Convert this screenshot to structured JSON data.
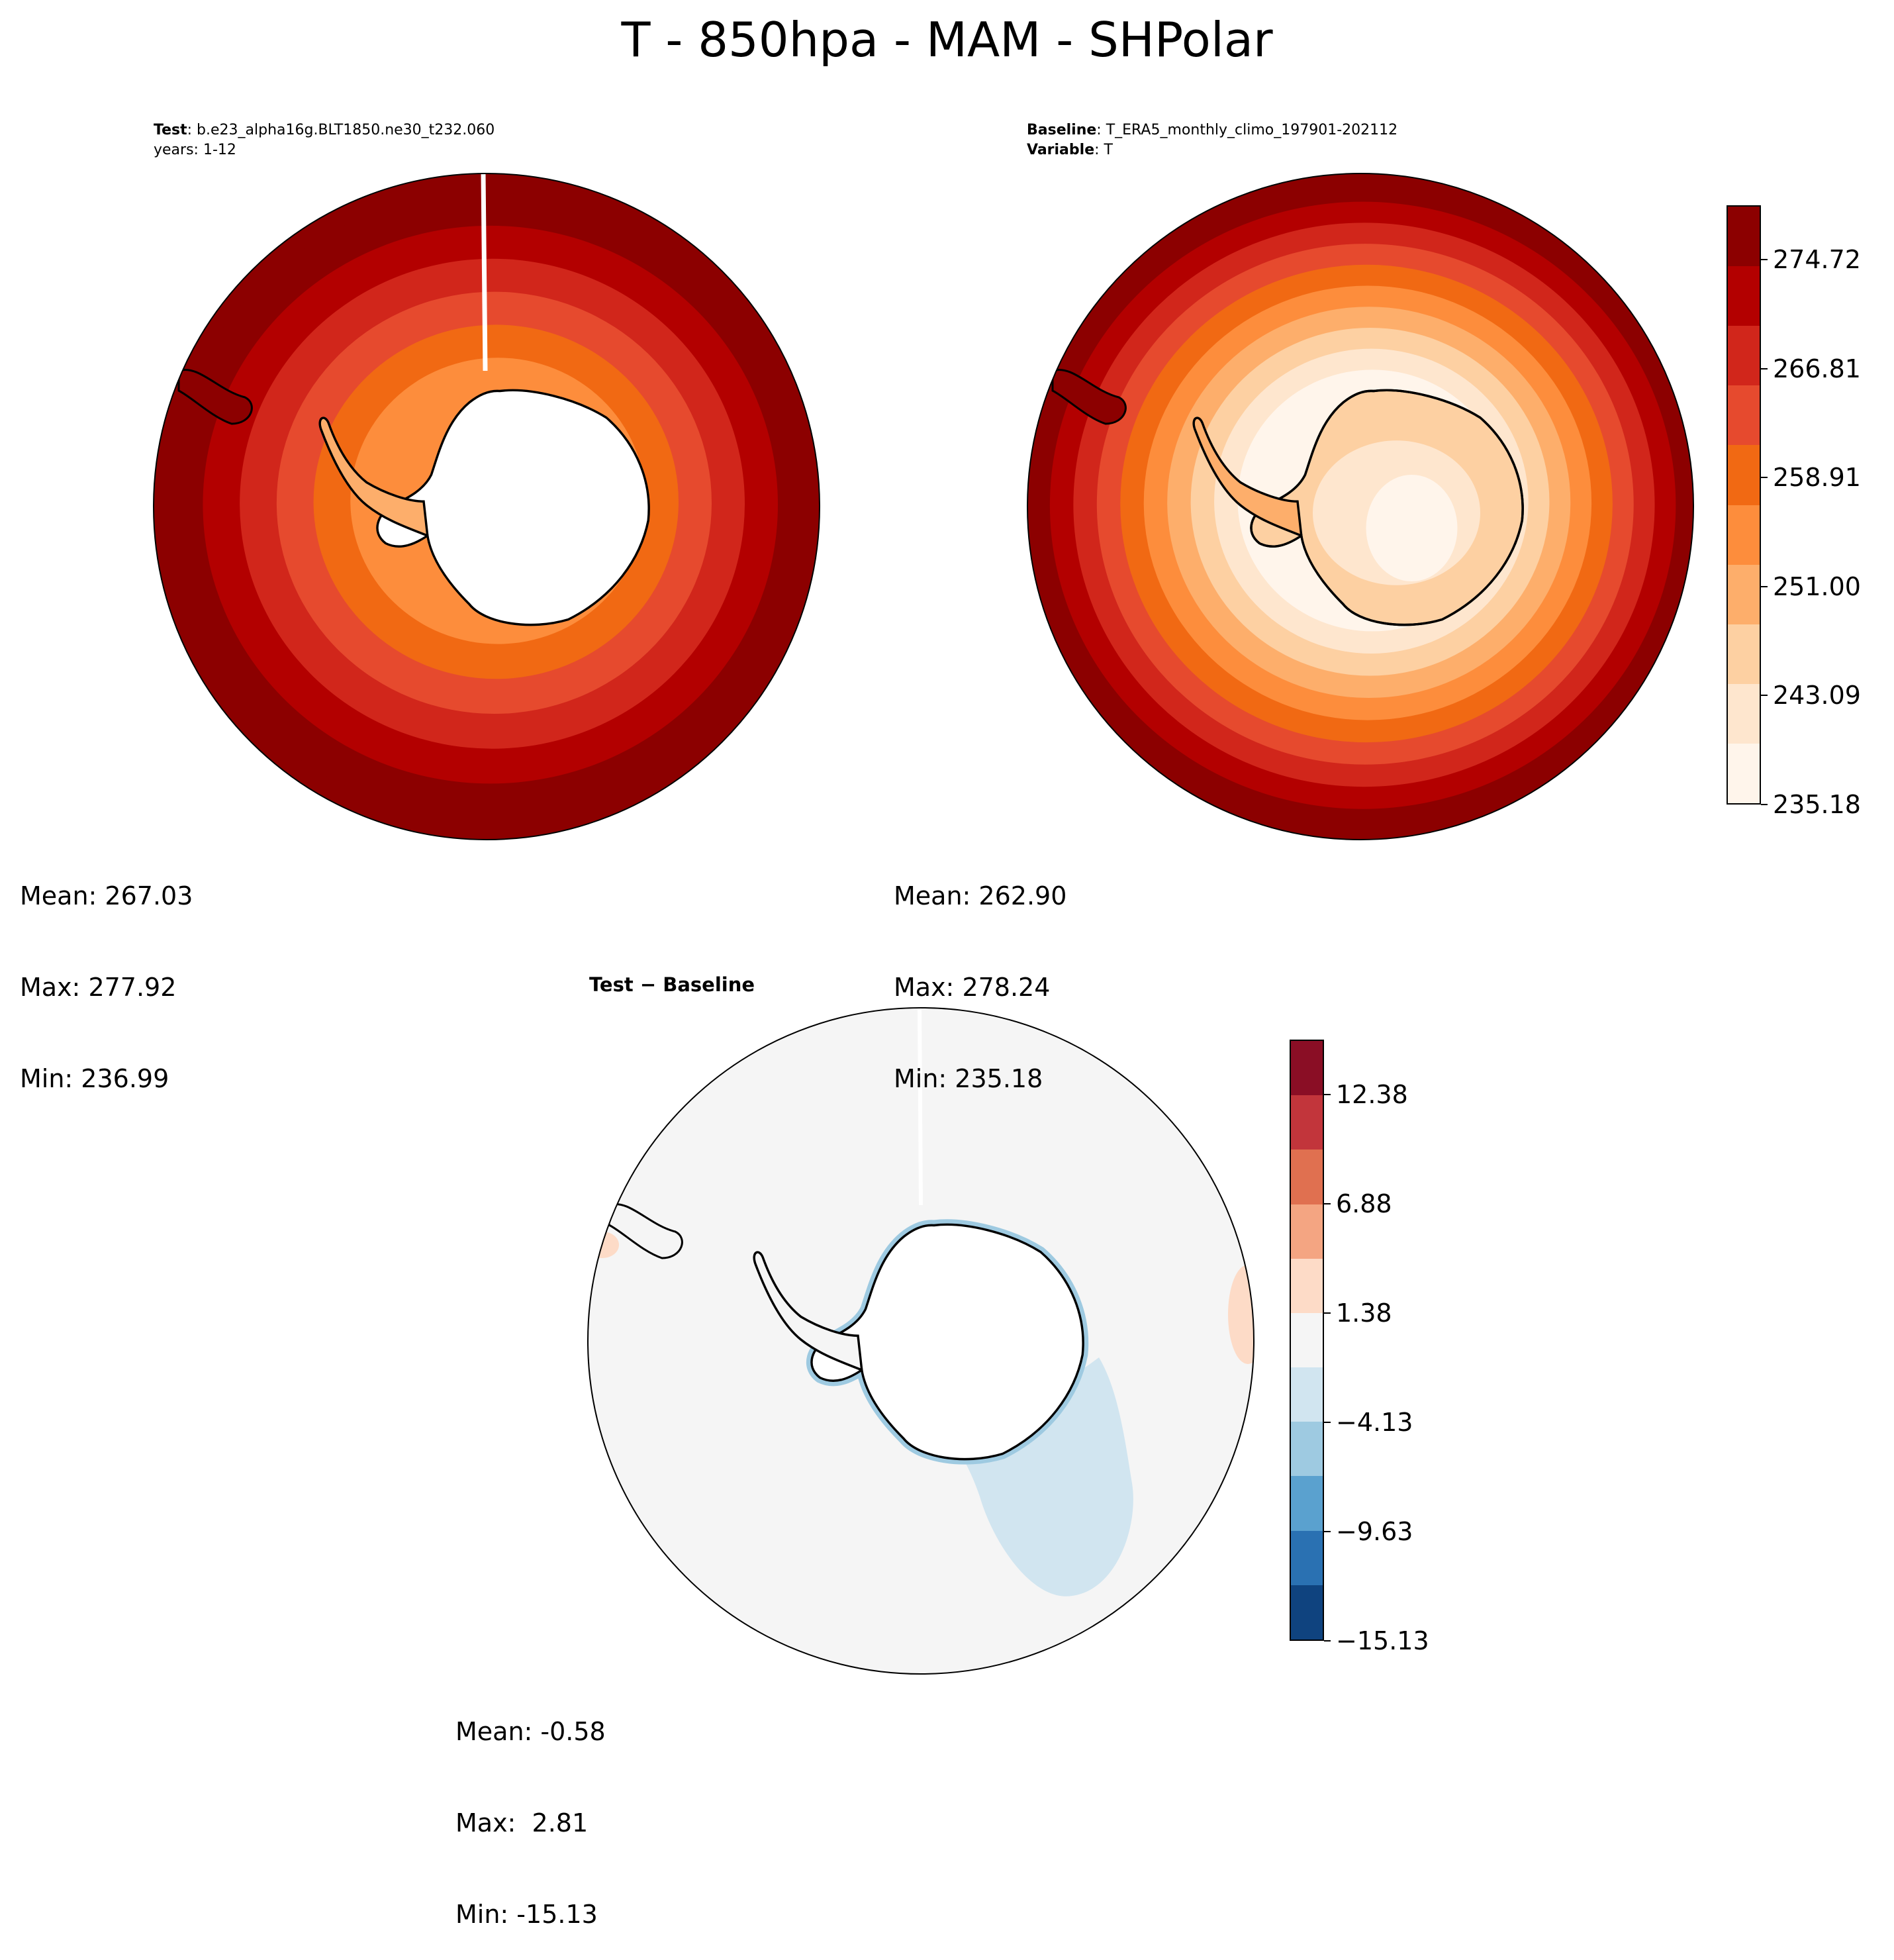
{
  "figure": {
    "title": "T - 850hpa - MAM - SHPolar"
  },
  "panels": {
    "test": {
      "label_bold": "Test",
      "label_text": ": b.e23_alpha16g.BLT1850.ne30_t232.060",
      "line2": "years: 1-12",
      "stats": {
        "mean": "Mean: 267.03",
        "max": "Max: 277.92",
        "min": "Min: 236.99"
      }
    },
    "baseline": {
      "label_bold": "Baseline",
      "label_text": ": T_ERA5_monthly_climo_197901-202112",
      "line2_bold": "Variable",
      "line2_text": ": T",
      "stats": {
        "mean": "Mean: 262.90",
        "max": "Max: 278.24",
        "min": "Min: 235.18"
      }
    },
    "diff": {
      "title": "Test − Baseline",
      "stats": {
        "mean": "Mean: -0.58",
        "max": "Max:  2.81",
        "min": "Min: -15.13"
      }
    }
  },
  "chart_data": [
    {
      "type": "heatmap",
      "panel": "test",
      "projection": "south-polar-stereographic",
      "variable": "T",
      "level": "850hpa",
      "season": "MAM",
      "mean": 267.03,
      "max": 277.92,
      "min": 236.99,
      "contour_rings_k": [
        276.5,
        274.7,
        271.5,
        267.5,
        263.0,
        258.9,
        255.0
      ],
      "note_masked": "Antarctic interior masked (below 850 hPa surface)"
    },
    {
      "type": "heatmap",
      "panel": "baseline",
      "projection": "south-polar-stereographic",
      "mean": 262.9,
      "max": 278.24,
      "min": 235.18,
      "contour_rings_k": [
        276.5,
        274.7,
        271.5,
        267.5,
        263.0,
        258.9,
        255.0,
        251.0,
        247.0,
        243.0,
        239.0
      ]
    },
    {
      "type": "heatmap",
      "panel": "diff",
      "projection": "south-polar-stereographic",
      "mean": -0.58,
      "max": 2.81,
      "min": -15.13,
      "features": [
        {
          "region": "Weddell Sea / Ross sector plume",
          "value_range": [
            -4.13,
            -1.38
          ]
        },
        {
          "region": "East edge",
          "value_range": [
            1.38,
            4.13
          ]
        },
        {
          "region": "coastal Antarctica",
          "value_range": [
            -15.13,
            -4.13
          ]
        }
      ]
    }
  ],
  "colorbars": {
    "abs": {
      "range": [
        235.18,
        278.68
      ],
      "tick_values": [
        235.18,
        243.09,
        251.0,
        258.91,
        266.81,
        274.72
      ],
      "tick_labels": [
        "235.18",
        "243.09",
        "251.00",
        "258.91",
        "266.81",
        "274.72"
      ],
      "colors": [
        "#fff5eb",
        "#fee6ce",
        "#fdd0a2",
        "#fdae6b",
        "#fd8d3c",
        "#f16913",
        "#e64a2e",
        "#d1261b",
        "#b30000",
        "#8c0000"
      ]
    },
    "diff": {
      "range": [
        -15.13,
        15.13
      ],
      "tick_values": [
        -15.13,
        -9.63,
        -4.13,
        1.38,
        6.88,
        12.38
      ],
      "tick_labels": [
        "−15.13",
        "−9.63",
        "−4.13",
        "1.38",
        "6.88",
        "12.38"
      ],
      "colors": [
        "#0f437f",
        "#2a71b2",
        "#5aa1cf",
        "#9ecae1",
        "#d1e5f0",
        "#f5f5f5",
        "#fddbc7",
        "#f4a582",
        "#e07050",
        "#c2353b",
        "#8a0e25"
      ]
    }
  }
}
